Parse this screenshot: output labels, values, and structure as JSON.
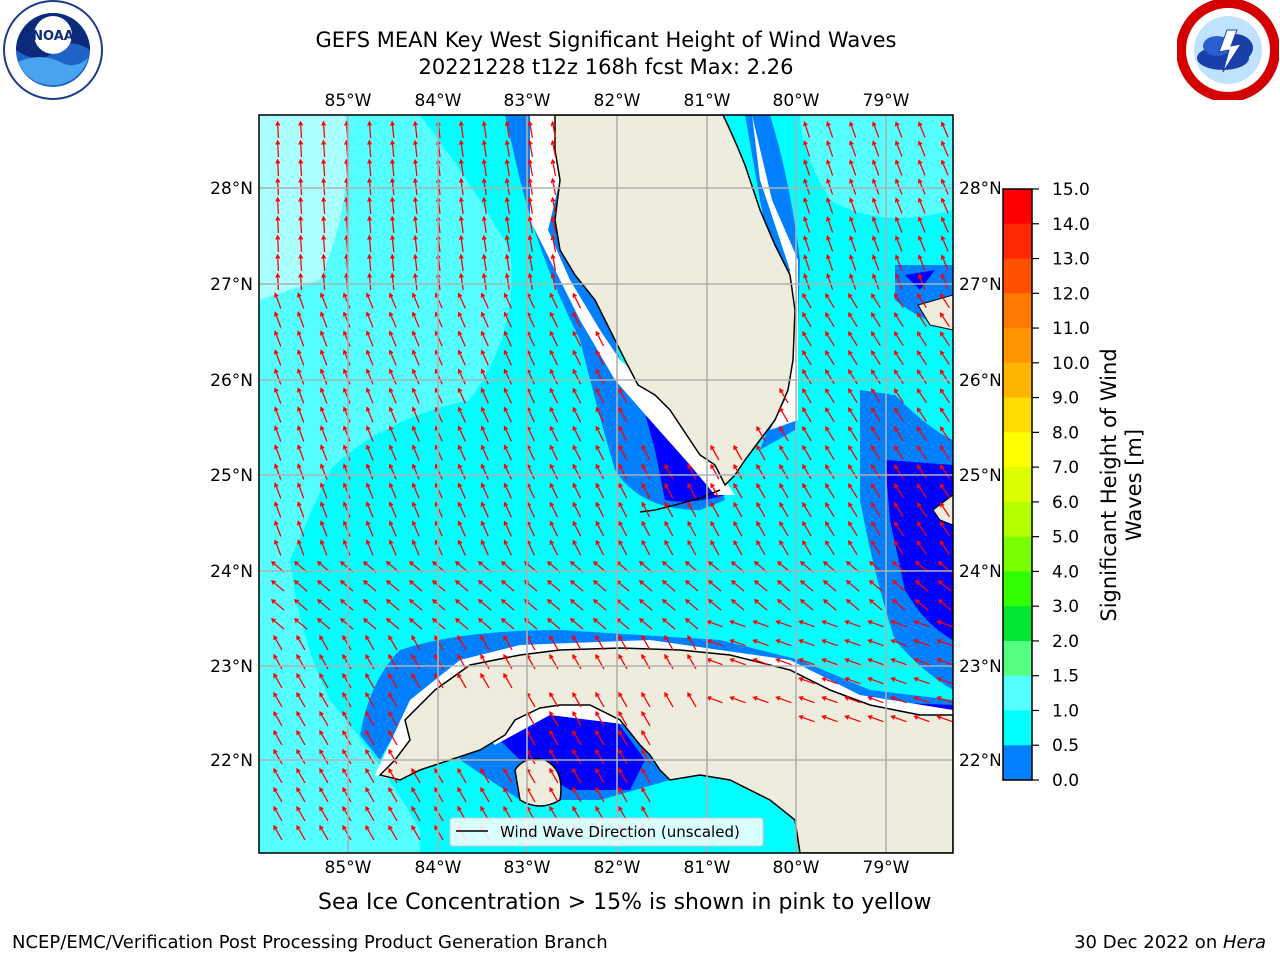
{
  "title": {
    "line1": "GEFS MEAN Key West Significant Height of Wind Waves",
    "line2": "20221228 t12z 168h fcst   Max: 2.26"
  },
  "logos": {
    "left": {
      "text": "NOAA",
      "ring_text": "NATIONAL OCEANIC AND ATMOSPHERIC ADMINISTRATION · U.S. DEPARTMENT OF COMMERCE"
    },
    "right": {
      "ring_text": "NATIONAL WEATHER SERVICE"
    }
  },
  "map": {
    "lon_labels": [
      "85°W",
      "84°W",
      "83°W",
      "82°W",
      "81°W",
      "80°W",
      "79°W"
    ],
    "lat_labels": [
      "28°N",
      "27°N",
      "26°N",
      "25°N",
      "24°N",
      "23°N",
      "22°N"
    ],
    "colors": {
      "land": "#eeecdc",
      "ocean_main": "#00ffff",
      "ocean_light": "#55ffff",
      "ocean_pale": "#aaffff",
      "shelf": "#0080ff",
      "deep": "#0000ff",
      "arrow": "#ff0000",
      "grid": "#b0b0b0"
    },
    "legend_label": "Wind Wave Direction (unscaled)"
  },
  "colorbar": {
    "ticks": [
      "15.0",
      "14.0",
      "13.0",
      "12.0",
      "11.0",
      "10.0",
      "9.0",
      "8.0",
      "7.0",
      "6.0",
      "5.0",
      "4.0",
      "3.0",
      "2.0",
      "1.5",
      "1.0",
      "0.5",
      "0.0"
    ],
    "colors": [
      "#ff0000",
      "#ff2800",
      "#ff5000",
      "#ff7800",
      "#ff9600",
      "#ffb400",
      "#ffdc00",
      "#ffff00",
      "#dcff00",
      "#b4ff00",
      "#78ff00",
      "#32ff00",
      "#00e632",
      "#55ff80",
      "#aaffff",
      "#55ffff",
      "#00ffff",
      "#0080ff",
      "#0000ff"
    ],
    "label_line1": "Significant Height of Wind",
    "label_line2": "Waves [m]"
  },
  "sea_ice_note": "Sea Ice Concentration > 15% is shown in pink to yellow",
  "footer": {
    "left": "NCEP/EMC/Verification Post Processing Product Generation Branch",
    "right_prefix": "30 Dec 2022 on ",
    "right_machine": "Hera"
  }
}
